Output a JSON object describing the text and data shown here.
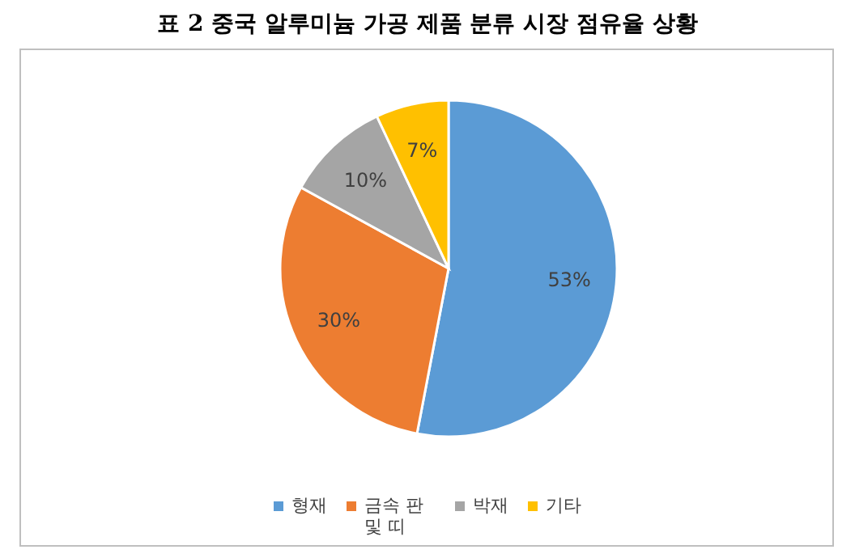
{
  "chart_data": {
    "type": "pie",
    "title": "표 2 중국 알루미늄 가공 제품 분류 시장 점유율 상황",
    "categories": [
      "형재",
      "금속 판 및 띠",
      "박재",
      "기타"
    ],
    "values": [
      53,
      30,
      10,
      7
    ],
    "value_labels": [
      "53%",
      "30%",
      "10%",
      "7%"
    ],
    "colors": [
      "#5b9bd5",
      "#ed7d31",
      "#a5a5a5",
      "#ffc000"
    ],
    "legend": "bottom"
  }
}
